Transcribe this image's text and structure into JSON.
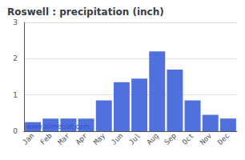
{
  "chart_data": {
    "type": "bar",
    "title": "Roswell : precipitation (inch)",
    "categories": [
      "Jan",
      "Feb",
      "Mar",
      "Apr",
      "May",
      "Jun",
      "Jul",
      "Aug",
      "Sep",
      "Oct",
      "Nov",
      "Dec"
    ],
    "values": [
      0.25,
      0.35,
      0.35,
      0.35,
      0.85,
      1.35,
      1.45,
      2.2,
      1.7,
      0.85,
      0.45,
      0.35
    ],
    "ylim": [
      0,
      3
    ],
    "yticks": [
      0,
      1,
      2,
      3
    ],
    "grid": true,
    "annotations": [
      "www.allmetsat.com"
    ]
  }
}
